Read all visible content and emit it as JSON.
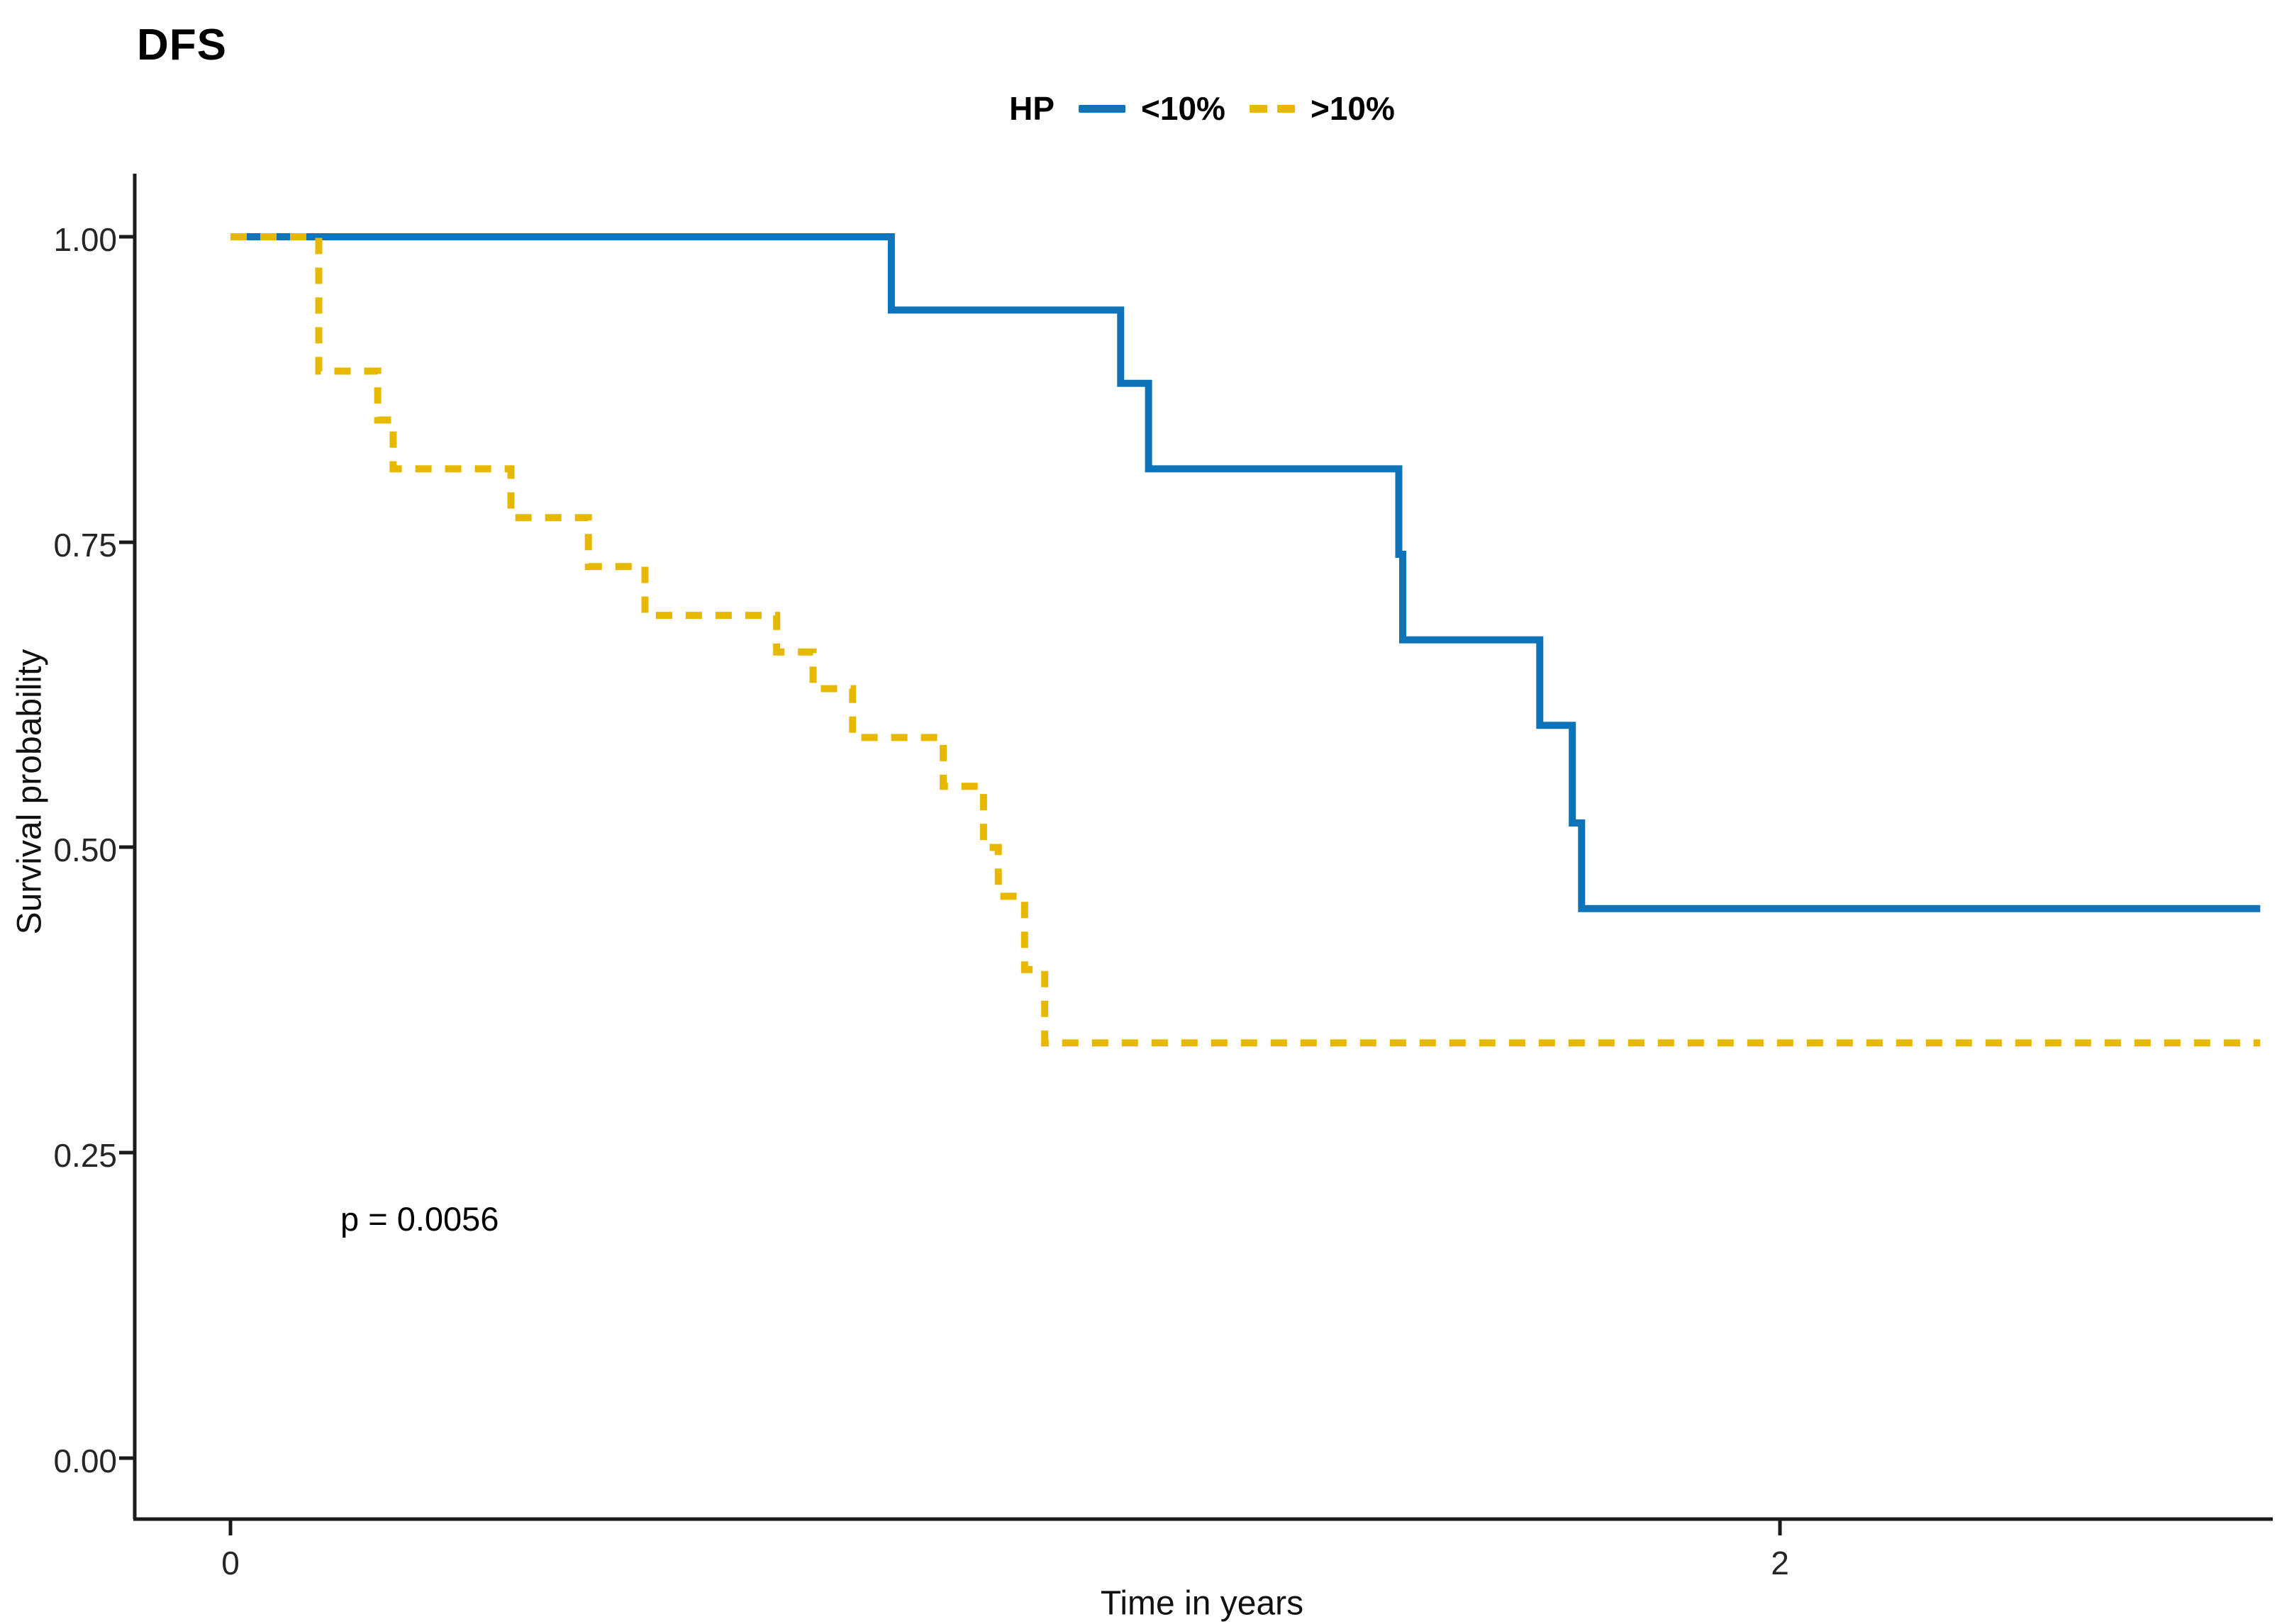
{
  "title": "DFS",
  "legend": {
    "title": "HP",
    "items": [
      {
        "label": "<10%",
        "color": "#0e73b8",
        "style": "solid"
      },
      {
        "label": ">10%",
        "color": "#e7b800",
        "style": "dashed"
      }
    ]
  },
  "annotation": {
    "p_value": "p = 0.0056"
  },
  "colors": {
    "blue": "#0e73b8",
    "yellow": "#e7b800",
    "axis": "#1a1a1a"
  },
  "chart_data": {
    "type": "line",
    "subtype": "kaplan-meier-step",
    "title": "DFS",
    "xlabel": "Time in years",
    "ylabel": "Survival probability",
    "x_ticks": [
      0,
      2
    ],
    "x_tick_labels": [
      "0",
      "2"
    ],
    "y_ticks": [
      1.0,
      0.75,
      0.5,
      0.25,
      0.0
    ],
    "y_tick_labels": [
      "1.00",
      "0.75",
      "0.50",
      "0.25",
      "0.00"
    ],
    "xlim": [
      -0.12,
      2.63
    ],
    "ylim": [
      -0.05,
      1.05
    ],
    "grid": false,
    "legend_position": "top",
    "p_value": 0.0056,
    "series": [
      {
        "name": "<10%",
        "color": "#0e73b8",
        "dash": "solid",
        "points": [
          [
            0.0,
            1.0
          ],
          [
            0.853,
            1.0
          ],
          [
            0.853,
            0.94
          ],
          [
            1.149,
            0.94
          ],
          [
            1.149,
            0.88
          ],
          [
            1.185,
            0.88
          ],
          [
            1.185,
            0.81
          ],
          [
            1.508,
            0.81
          ],
          [
            1.508,
            0.74
          ],
          [
            1.513,
            0.74
          ],
          [
            1.513,
            0.67
          ],
          [
            1.69,
            0.67
          ],
          [
            1.69,
            0.6
          ],
          [
            1.732,
            0.6
          ],
          [
            1.732,
            0.52
          ],
          [
            1.744,
            0.52
          ],
          [
            1.744,
            0.45
          ],
          [
            2.62,
            0.45
          ]
        ]
      },
      {
        "name": ">10%",
        "color": "#e7b800",
        "dash": "dashed",
        "points": [
          [
            0.0,
            1.0
          ],
          [
            0.114,
            1.0
          ],
          [
            0.114,
            0.89
          ],
          [
            0.19,
            0.89
          ],
          [
            0.19,
            0.85
          ],
          [
            0.21,
            0.85
          ],
          [
            0.21,
            0.81
          ],
          [
            0.362,
            0.81
          ],
          [
            0.362,
            0.77
          ],
          [
            0.462,
            0.77
          ],
          [
            0.462,
            0.73
          ],
          [
            0.535,
            0.73
          ],
          [
            0.535,
            0.69
          ],
          [
            0.705,
            0.69
          ],
          [
            0.705,
            0.66
          ],
          [
            0.752,
            0.66
          ],
          [
            0.752,
            0.63
          ],
          [
            0.803,
            0.63
          ],
          [
            0.803,
            0.59
          ],
          [
            0.92,
            0.59
          ],
          [
            0.92,
            0.55
          ],
          [
            0.972,
            0.55
          ],
          [
            0.972,
            0.5
          ],
          [
            0.991,
            0.5
          ],
          [
            0.991,
            0.46
          ],
          [
            1.025,
            0.46
          ],
          [
            1.025,
            0.4
          ],
          [
            1.051,
            0.4
          ],
          [
            1.051,
            0.34
          ],
          [
            2.62,
            0.34
          ]
        ]
      }
    ]
  }
}
